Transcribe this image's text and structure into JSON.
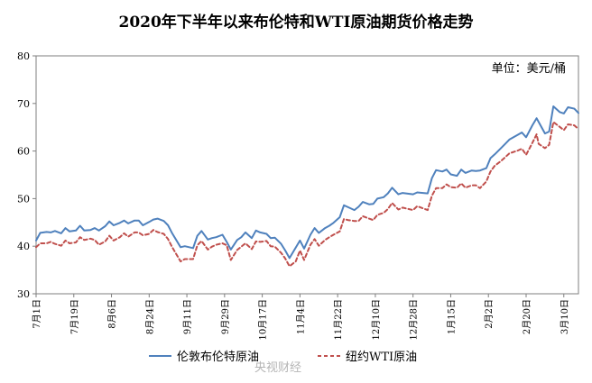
{
  "chart_data": {
    "type": "line",
    "title": "2020年下半年以来布伦特和WTI原油期货价格走势",
    "unit_label": "单位：美元/桶",
    "watermark": "央视财经",
    "ylim": [
      30,
      80
    ],
    "yticks": [
      "30",
      "40",
      "50",
      "60",
      "70",
      "80"
    ],
    "x_range": [
      "2020-07-01",
      "2021-03-17"
    ],
    "xticks": [
      {
        "date": "2020-07-01",
        "label": "7月1日"
      },
      {
        "date": "2020-07-19",
        "label": "7月19日"
      },
      {
        "date": "2020-08-06",
        "label": "8月6日"
      },
      {
        "date": "2020-08-24",
        "label": "8月24日"
      },
      {
        "date": "2020-09-11",
        "label": "9月11日"
      },
      {
        "date": "2020-09-29",
        "label": "9月29日"
      },
      {
        "date": "2020-10-17",
        "label": "10月17日"
      },
      {
        "date": "2020-11-04",
        "label": "11月4日"
      },
      {
        "date": "2020-11-22",
        "label": "11月22日"
      },
      {
        "date": "2020-12-10",
        "label": "12月10日"
      },
      {
        "date": "2020-12-28",
        "label": "12月28日"
      },
      {
        "date": "2021-01-15",
        "label": "1月15日"
      },
      {
        "date": "2021-02-02",
        "label": "2月2日"
      },
      {
        "date": "2021-02-20",
        "label": "2月20日"
      },
      {
        "date": "2021-03-10",
        "label": "3月10日"
      }
    ],
    "grid": false,
    "legend_position": "bottom",
    "series": [
      {
        "name": "伦敦布伦特原油",
        "color": "#4f81bd",
        "style": "solid",
        "points": [
          [
            "2020-07-01",
            41.2
          ],
          [
            "2020-07-03",
            42.8
          ],
          [
            "2020-07-06",
            43.0
          ],
          [
            "2020-07-08",
            42.9
          ],
          [
            "2020-07-10",
            43.2
          ],
          [
            "2020-07-13",
            42.7
          ],
          [
            "2020-07-15",
            43.8
          ],
          [
            "2020-07-17",
            43.1
          ],
          [
            "2020-07-20",
            43.3
          ],
          [
            "2020-07-22",
            44.3
          ],
          [
            "2020-07-24",
            43.3
          ],
          [
            "2020-07-27",
            43.4
          ],
          [
            "2020-07-29",
            43.8
          ],
          [
            "2020-07-31",
            43.3
          ],
          [
            "2020-08-03",
            44.2
          ],
          [
            "2020-08-05",
            45.2
          ],
          [
            "2020-08-07",
            44.4
          ],
          [
            "2020-08-10",
            44.9
          ],
          [
            "2020-08-12",
            45.4
          ],
          [
            "2020-08-14",
            44.8
          ],
          [
            "2020-08-17",
            45.4
          ],
          [
            "2020-08-19",
            45.4
          ],
          [
            "2020-08-21",
            44.4
          ],
          [
            "2020-08-24",
            45.1
          ],
          [
            "2020-08-26",
            45.6
          ],
          [
            "2020-08-28",
            45.8
          ],
          [
            "2020-08-31",
            45.3
          ],
          [
            "2020-09-02",
            44.4
          ],
          [
            "2020-09-04",
            42.7
          ],
          [
            "2020-09-08",
            39.8
          ],
          [
            "2020-09-10",
            40.0
          ],
          [
            "2020-09-14",
            39.6
          ],
          [
            "2020-09-16",
            42.2
          ],
          [
            "2020-09-18",
            43.2
          ],
          [
            "2020-09-21",
            41.4
          ],
          [
            "2020-09-23",
            41.7
          ],
          [
            "2020-09-25",
            41.9
          ],
          [
            "2020-09-28",
            42.4
          ],
          [
            "2020-09-30",
            40.9
          ],
          [
            "2020-10-02",
            39.3
          ],
          [
            "2020-10-05",
            41.3
          ],
          [
            "2020-10-07",
            41.9
          ],
          [
            "2020-10-09",
            42.9
          ],
          [
            "2020-10-12",
            41.7
          ],
          [
            "2020-10-14",
            43.3
          ],
          [
            "2020-10-16",
            42.9
          ],
          [
            "2020-10-19",
            42.6
          ],
          [
            "2020-10-21",
            41.7
          ],
          [
            "2020-10-23",
            41.8
          ],
          [
            "2020-10-26",
            40.5
          ],
          [
            "2020-10-28",
            39.1
          ],
          [
            "2020-10-30",
            37.5
          ],
          [
            "2020-11-02",
            39.7
          ],
          [
            "2020-11-04",
            41.2
          ],
          [
            "2020-11-06",
            39.5
          ],
          [
            "2020-11-09",
            42.4
          ],
          [
            "2020-11-11",
            43.8
          ],
          [
            "2020-11-13",
            42.8
          ],
          [
            "2020-11-16",
            43.8
          ],
          [
            "2020-11-18",
            44.3
          ],
          [
            "2020-11-20",
            44.9
          ],
          [
            "2020-11-23",
            46.1
          ],
          [
            "2020-11-25",
            48.6
          ],
          [
            "2020-11-27",
            48.2
          ],
          [
            "2020-11-30",
            47.6
          ],
          [
            "2020-12-02",
            48.3
          ],
          [
            "2020-12-04",
            49.3
          ],
          [
            "2020-12-07",
            48.8
          ],
          [
            "2020-12-09",
            48.9
          ],
          [
            "2020-12-11",
            50.0
          ],
          [
            "2020-12-14",
            50.3
          ],
          [
            "2020-12-16",
            51.1
          ],
          [
            "2020-12-18",
            52.3
          ],
          [
            "2020-12-21",
            50.9
          ],
          [
            "2020-12-23",
            51.2
          ],
          [
            "2020-12-28",
            50.9
          ],
          [
            "2020-12-30",
            51.3
          ],
          [
            "2021-01-04",
            51.1
          ],
          [
            "2021-01-06",
            54.3
          ],
          [
            "2021-01-08",
            55.99
          ],
          [
            "2021-01-11",
            55.7
          ],
          [
            "2021-01-13",
            56.1
          ],
          [
            "2021-01-15",
            55.1
          ],
          [
            "2021-01-18",
            54.8
          ],
          [
            "2021-01-20",
            56.1
          ],
          [
            "2021-01-22",
            55.4
          ],
          [
            "2021-01-25",
            55.9
          ],
          [
            "2021-01-27",
            55.8
          ],
          [
            "2021-01-29",
            55.9
          ],
          [
            "2021-02-01",
            56.4
          ],
          [
            "2021-02-03",
            58.5
          ],
          [
            "2021-02-05",
            59.3
          ],
          [
            "2021-02-08",
            60.6
          ],
          [
            "2021-02-10",
            61.5
          ],
          [
            "2021-02-12",
            62.4
          ],
          [
            "2021-02-16",
            63.4
          ],
          [
            "2021-02-18",
            63.9
          ],
          [
            "2021-02-20",
            62.9
          ],
          [
            "2021-02-23",
            65.4
          ],
          [
            "2021-02-25",
            66.9
          ],
          [
            "2021-02-26",
            66.1
          ],
          [
            "2021-03-01",
            63.7
          ],
          [
            "2021-03-03",
            64.1
          ],
          [
            "2021-03-05",
            69.4
          ],
          [
            "2021-03-08",
            68.2
          ],
          [
            "2021-03-10",
            67.9
          ],
          [
            "2021-03-12",
            69.2
          ],
          [
            "2021-03-15",
            68.9
          ],
          [
            "2021-03-17",
            68.0
          ]
        ]
      },
      {
        "name": "纽约WTI原油",
        "color": "#c0504d",
        "style": "dashed",
        "points": [
          [
            "2020-07-01",
            39.8
          ],
          [
            "2020-07-03",
            40.6
          ],
          [
            "2020-07-06",
            40.6
          ],
          [
            "2020-07-08",
            40.9
          ],
          [
            "2020-07-10",
            40.5
          ],
          [
            "2020-07-13",
            40.1
          ],
          [
            "2020-07-15",
            41.2
          ],
          [
            "2020-07-17",
            40.6
          ],
          [
            "2020-07-20",
            40.8
          ],
          [
            "2020-07-22",
            41.9
          ],
          [
            "2020-07-24",
            41.3
          ],
          [
            "2020-07-27",
            41.6
          ],
          [
            "2020-07-29",
            41.3
          ],
          [
            "2020-07-31",
            40.3
          ],
          [
            "2020-08-03",
            41.0
          ],
          [
            "2020-08-05",
            42.2
          ],
          [
            "2020-08-07",
            41.2
          ],
          [
            "2020-08-10",
            41.9
          ],
          [
            "2020-08-12",
            42.7
          ],
          [
            "2020-08-14",
            42.0
          ],
          [
            "2020-08-17",
            42.9
          ],
          [
            "2020-08-19",
            42.9
          ],
          [
            "2020-08-21",
            42.3
          ],
          [
            "2020-08-24",
            42.6
          ],
          [
            "2020-08-26",
            43.4
          ],
          [
            "2020-08-28",
            42.97
          ],
          [
            "2020-08-31",
            42.6
          ],
          [
            "2020-09-02",
            41.5
          ],
          [
            "2020-09-04",
            39.8
          ],
          [
            "2020-09-08",
            36.8
          ],
          [
            "2020-09-10",
            37.3
          ],
          [
            "2020-09-14",
            37.3
          ],
          [
            "2020-09-16",
            40.2
          ],
          [
            "2020-09-18",
            41.1
          ],
          [
            "2020-09-21",
            39.3
          ],
          [
            "2020-09-23",
            39.9
          ],
          [
            "2020-09-25",
            40.3
          ],
          [
            "2020-09-28",
            40.6
          ],
          [
            "2020-09-30",
            40.2
          ],
          [
            "2020-10-02",
            37.1
          ],
          [
            "2020-10-05",
            39.2
          ],
          [
            "2020-10-07",
            39.9
          ],
          [
            "2020-10-09",
            40.6
          ],
          [
            "2020-10-12",
            39.4
          ],
          [
            "2020-10-14",
            41.0
          ],
          [
            "2020-10-16",
            40.9
          ],
          [
            "2020-10-19",
            41.1
          ],
          [
            "2020-10-21",
            40.0
          ],
          [
            "2020-10-23",
            39.9
          ],
          [
            "2020-10-26",
            38.6
          ],
          [
            "2020-10-28",
            37.4
          ],
          [
            "2020-10-30",
            35.8
          ],
          [
            "2020-11-02",
            36.8
          ],
          [
            "2020-11-04",
            39.1
          ],
          [
            "2020-11-06",
            37.1
          ],
          [
            "2020-11-09",
            40.3
          ],
          [
            "2020-11-11",
            41.5
          ],
          [
            "2020-11-13",
            40.1
          ],
          [
            "2020-11-16",
            41.3
          ],
          [
            "2020-11-18",
            41.9
          ],
          [
            "2020-11-20",
            42.4
          ],
          [
            "2020-11-23",
            43.1
          ],
          [
            "2020-11-25",
            45.7
          ],
          [
            "2020-11-27",
            45.5
          ],
          [
            "2020-11-30",
            45.3
          ],
          [
            "2020-12-02",
            45.3
          ],
          [
            "2020-12-04",
            46.3
          ],
          [
            "2020-12-07",
            45.8
          ],
          [
            "2020-12-09",
            45.5
          ],
          [
            "2020-12-11",
            46.6
          ],
          [
            "2020-12-14",
            47.0
          ],
          [
            "2020-12-16",
            47.8
          ],
          [
            "2020-12-18",
            49.1
          ],
          [
            "2020-12-21",
            47.7
          ],
          [
            "2020-12-23",
            48.1
          ],
          [
            "2020-12-28",
            47.6
          ],
          [
            "2020-12-30",
            48.4
          ],
          [
            "2021-01-04",
            47.6
          ],
          [
            "2021-01-06",
            50.6
          ],
          [
            "2021-01-08",
            52.2
          ],
          [
            "2021-01-11",
            52.2
          ],
          [
            "2021-01-13",
            53.0
          ],
          [
            "2021-01-15",
            52.4
          ],
          [
            "2021-01-18",
            52.3
          ],
          [
            "2021-01-20",
            53.2
          ],
          [
            "2021-01-22",
            52.3
          ],
          [
            "2021-01-25",
            52.8
          ],
          [
            "2021-01-27",
            52.8
          ],
          [
            "2021-01-29",
            52.2
          ],
          [
            "2021-02-01",
            53.6
          ],
          [
            "2021-02-03",
            55.7
          ],
          [
            "2021-02-05",
            56.9
          ],
          [
            "2021-02-08",
            57.9
          ],
          [
            "2021-02-10",
            58.7
          ],
          [
            "2021-02-12",
            59.5
          ],
          [
            "2021-02-16",
            60.1
          ],
          [
            "2021-02-18",
            60.5
          ],
          [
            "2021-02-20",
            59.2
          ],
          [
            "2021-02-23",
            61.7
          ],
          [
            "2021-02-25",
            63.5
          ],
          [
            "2021-02-26",
            61.5
          ],
          [
            "2021-03-01",
            60.6
          ],
          [
            "2021-03-03",
            61.3
          ],
          [
            "2021-03-05",
            66.1
          ],
          [
            "2021-03-08",
            65.1
          ],
          [
            "2021-03-10",
            64.4
          ],
          [
            "2021-03-12",
            65.6
          ],
          [
            "2021-03-15",
            65.4
          ],
          [
            "2021-03-17",
            64.6
          ]
        ]
      }
    ]
  }
}
